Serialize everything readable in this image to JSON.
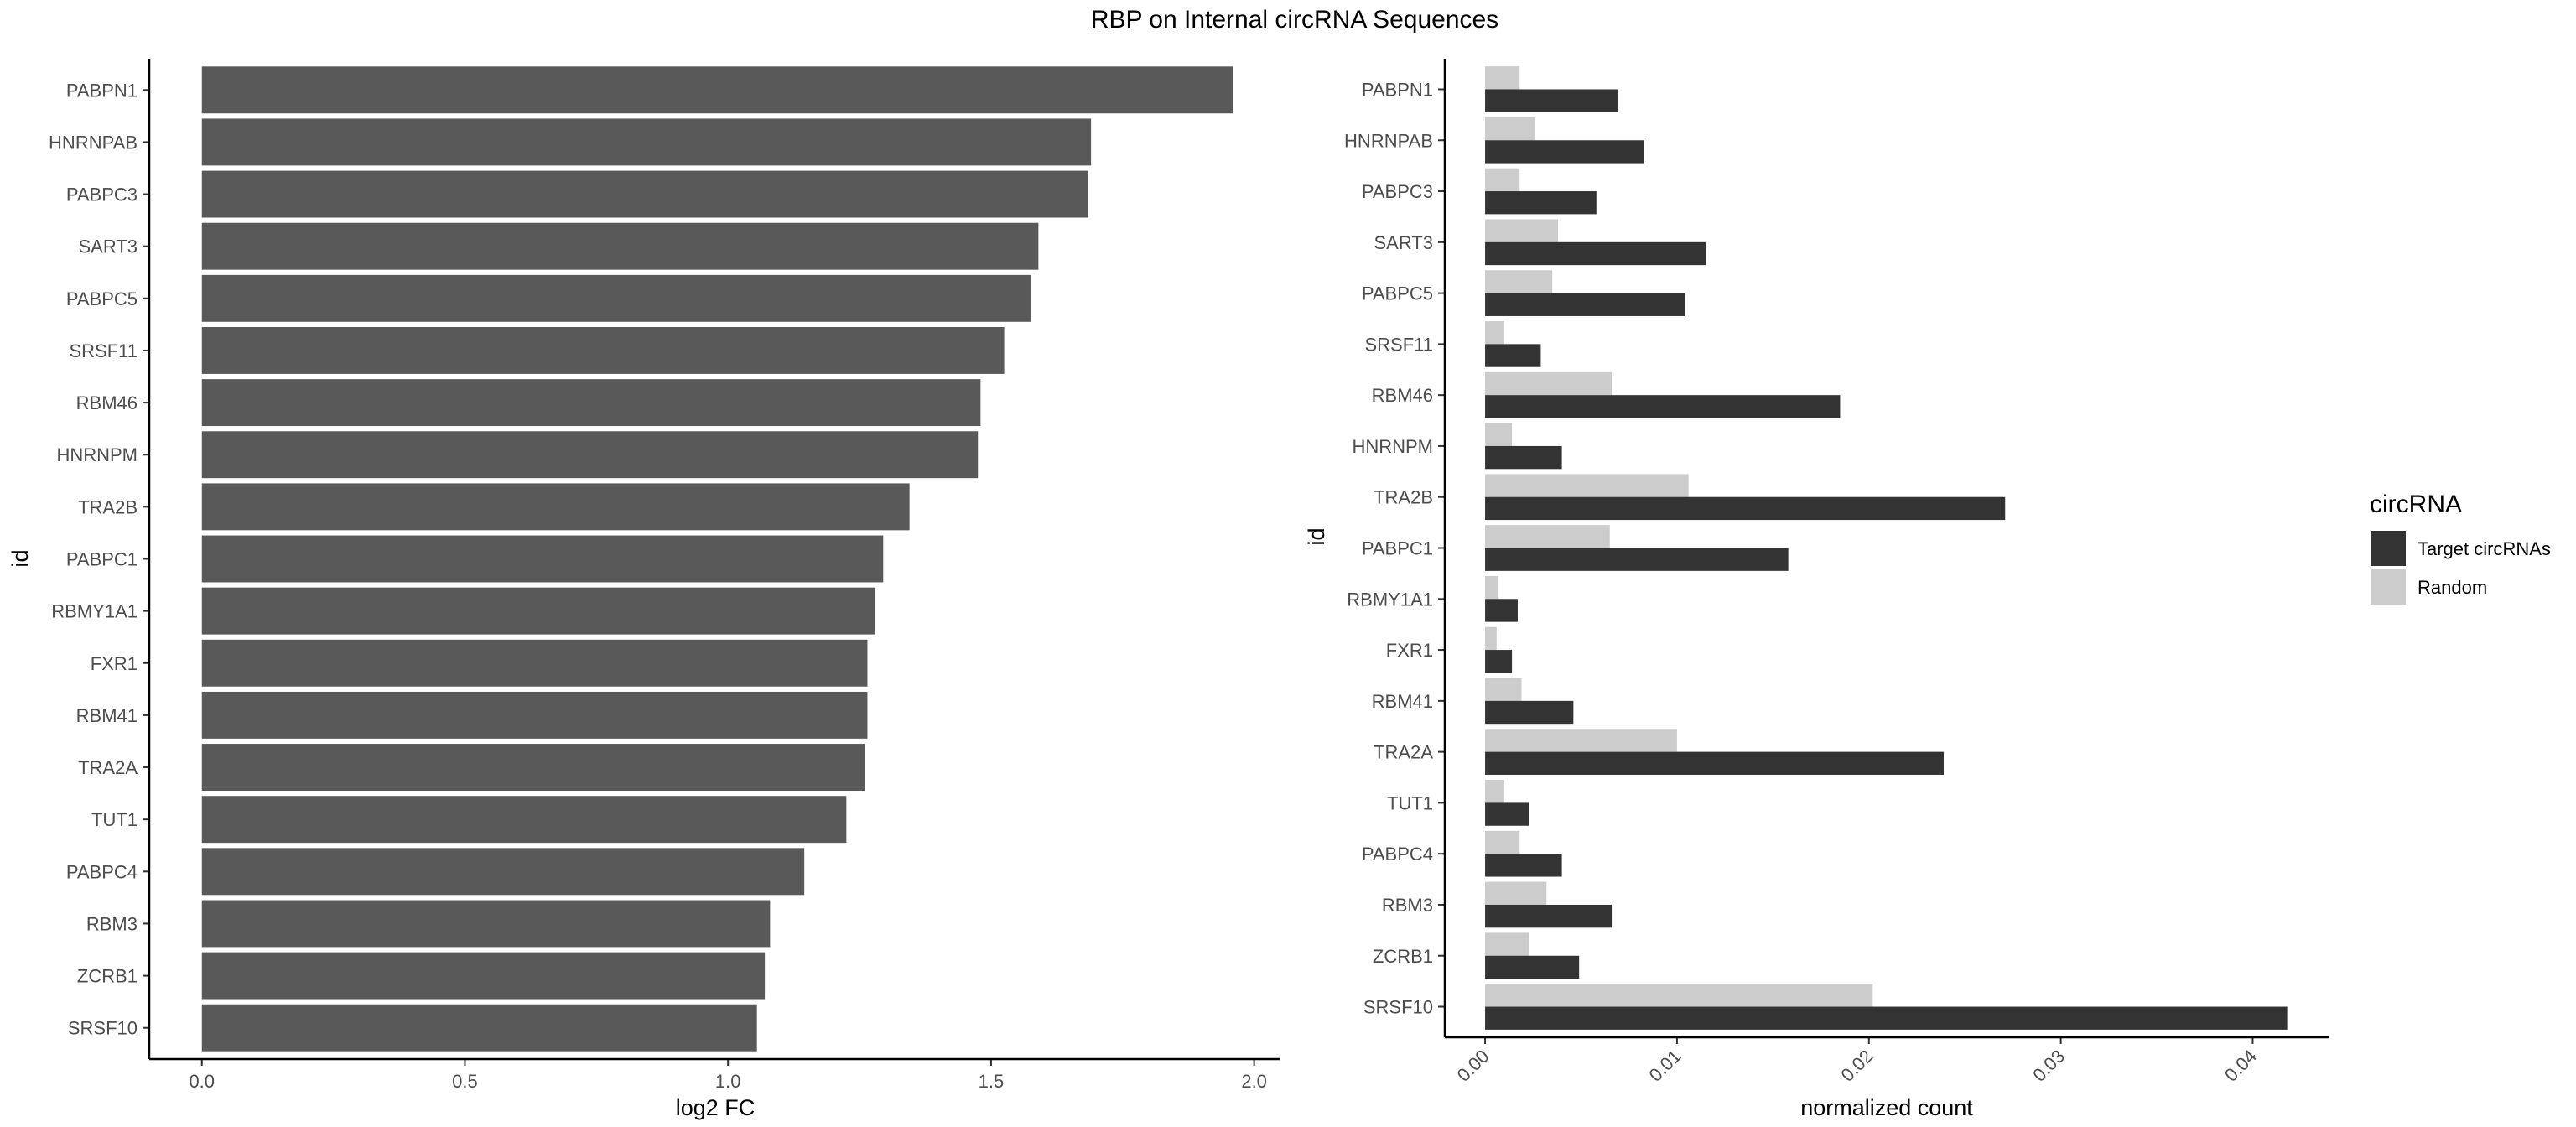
{
  "title": "RBP on Internal circRNA Sequences",
  "colors": {
    "left_bar": "#595959",
    "target": "#333333",
    "random": "#cccccc",
    "axis": "#000000"
  },
  "chart_data": [
    {
      "type": "bar",
      "orientation": "horizontal",
      "categories": [
        "PABPN1",
        "HNRNPAB",
        "PABPC3",
        "SART3",
        "PABPC5",
        "SRSF11",
        "RBM46",
        "HNRNPM",
        "TRA2B",
        "PABPC1",
        "RBMY1A1",
        "FXR1",
        "RBM41",
        "TRA2A",
        "TUT1",
        "PABPC4",
        "RBM3",
        "ZCRB1",
        "SRSF10"
      ],
      "values": [
        1.96,
        1.69,
        1.685,
        1.59,
        1.575,
        1.525,
        1.48,
        1.475,
        1.345,
        1.295,
        1.28,
        1.265,
        1.265,
        1.26,
        1.225,
        1.145,
        1.08,
        1.07,
        1.055
      ],
      "xlabel": "log2 FC",
      "ylabel": "id",
      "xlim": [
        -0.1,
        2.05
      ],
      "xticks": [
        "0.0",
        "0.5",
        "1.0",
        "1.5",
        "2.0"
      ],
      "grid": false
    },
    {
      "type": "bar",
      "orientation": "horizontal",
      "grouped": true,
      "categories": [
        "PABPN1",
        "HNRNPAB",
        "PABPC3",
        "SART3",
        "PABPC5",
        "SRSF11",
        "RBM46",
        "HNRNPM",
        "TRA2B",
        "PABPC1",
        "RBMY1A1",
        "FXR1",
        "RBM41",
        "TRA2A",
        "TUT1",
        "PABPC4",
        "RBM3",
        "ZCRB1",
        "SRSF10"
      ],
      "series": [
        {
          "name": "Target circRNAs",
          "values": [
            0.0069,
            0.0083,
            0.0058,
            0.0115,
            0.0104,
            0.0029,
            0.0185,
            0.004,
            0.0271,
            0.0158,
            0.0017,
            0.0014,
            0.0046,
            0.0239,
            0.0023,
            0.004,
            0.0066,
            0.0049,
            0.0418
          ]
        },
        {
          "name": "Random",
          "values": [
            0.0018,
            0.0026,
            0.0018,
            0.0038,
            0.0035,
            0.001,
            0.0066,
            0.0014,
            0.0106,
            0.0065,
            0.0007,
            0.0006,
            0.0019,
            0.01,
            0.001,
            0.0018,
            0.0032,
            0.0023,
            0.0202
          ]
        }
      ],
      "xlabel": "normalized count",
      "ylabel": "id",
      "xlim": [
        -0.0021,
        0.044
      ],
      "xticks": [
        "0.00",
        "0.01",
        "0.02",
        "0.03",
        "0.04"
      ],
      "grid": false,
      "legend": {
        "title": "circRNA",
        "placement": "right"
      }
    }
  ]
}
